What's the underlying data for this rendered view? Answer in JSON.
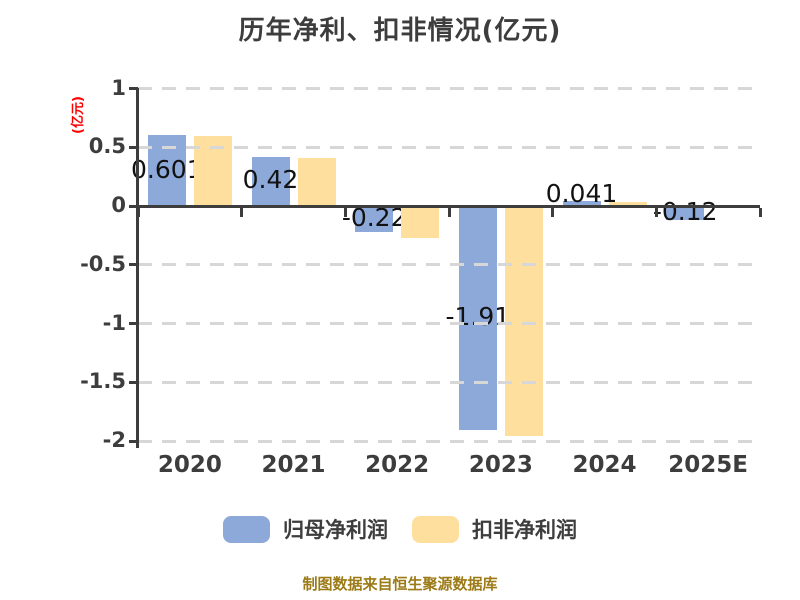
{
  "title": "历年净利、扣非情况(亿元)",
  "y_axis_unit": "(亿元)",
  "footer_note": "制图数据来自恒生聚源数据库",
  "colors": {
    "net_profit_blue": "#8da9da",
    "non_recurring_yellow": "#ffdf9e",
    "axis_text": "#3d3d3d",
    "value_label_text": "#121212",
    "unit_label_red": "#ff0000",
    "gridline": "#d7d7d7",
    "footer_gold": "#9c7b17",
    "background": "#ffffff"
  },
  "legend": {
    "items": [
      {
        "label": "归母净利润",
        "color": "#8da9da"
      },
      {
        "label": "扣非净利润",
        "color": "#ffdf9e"
      }
    ]
  },
  "chart_data": {
    "type": "bar",
    "title": "历年净利、扣非情况(亿元)",
    "categories": [
      "2020",
      "2021",
      "2022",
      "2023",
      "2024",
      "2025E"
    ],
    "series": [
      {
        "name": "归母净利润",
        "color": "#8da9da",
        "values": [
          0.601,
          0.42,
          -0.22,
          -1.91,
          0.041,
          -0.12
        ],
        "value_labels": [
          "0.601",
          "0.42",
          "-0.22",
          "-1.91",
          "0.041",
          "-0.12"
        ]
      },
      {
        "name": "扣非净利润",
        "color": "#ffdf9e",
        "values": [
          0.6,
          0.41,
          -0.27,
          -1.96,
          0.03,
          null
        ]
      }
    ],
    "ylabel": "(亿元)",
    "ylim": [
      -2,
      1
    ],
    "ytick_step": 0.5,
    "y_ticks": [
      1,
      0.5,
      0,
      -0.5,
      -1,
      -1.5,
      -2
    ],
    "grid": "dashed-horizontal",
    "grid_over_bars": true,
    "legend_position": "bottom",
    "source_note": "制图数据来自恒生聚源数据库"
  }
}
